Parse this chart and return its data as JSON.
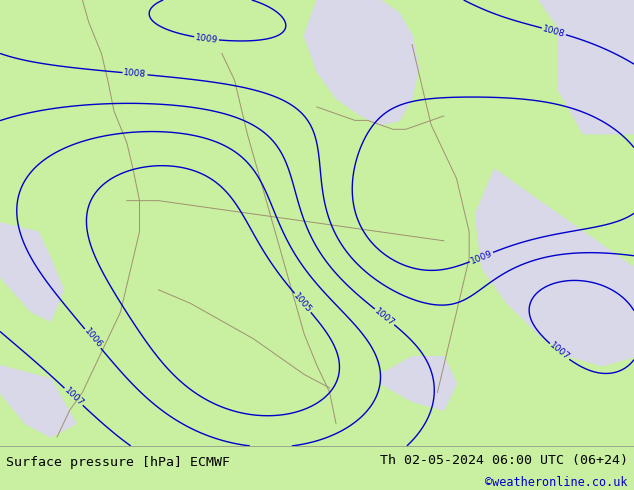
{
  "title_left": "Surface pressure [hPa] ECMWF",
  "title_right": "Th 02-05-2024 06:00 UTC (06+24)",
  "subtitle_right": "©weatheronline.co.uk",
  "background_color": "#c8f0a0",
  "land_color": "#c8f0a0",
  "sea_color": "#d8d8e8",
  "contour_color": "#0000cc",
  "border_color": "#a09070",
  "figsize": [
    6.34,
    4.9
  ],
  "dpi": 100,
  "bottom_bar_color": "#ffffff",
  "bottom_bar_height": 0.09,
  "title_fontsize": 9.5,
  "contour_fontsize": 6.5,
  "title_left_color": "#000000",
  "title_right_color": "#000000",
  "subtitle_color": "#0000cc",
  "contour_linewidth": 1.0,
  "levels": [
    1005,
    1006,
    1007,
    1008,
    1009
  ]
}
